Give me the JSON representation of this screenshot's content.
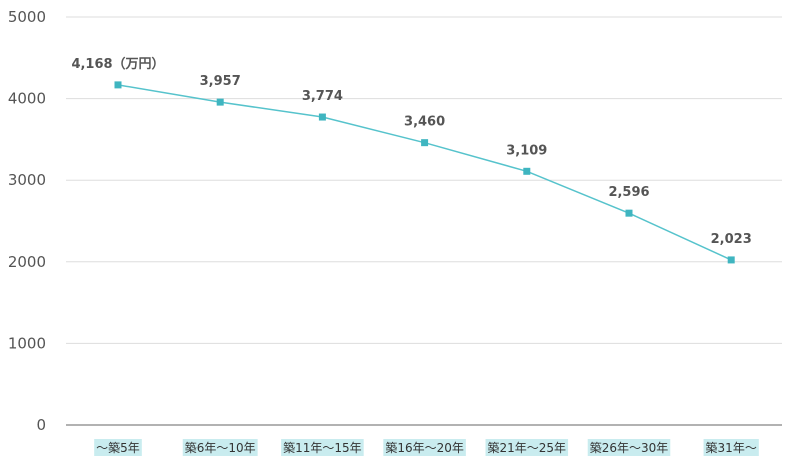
{
  "chart_data": {
    "type": "line",
    "categories": [
      "～築5年",
      "築6年～10年",
      "築11年～15年",
      "築16年～20年",
      "築21年～25年",
      "築26年～30年",
      "築31年～"
    ],
    "values": [
      4168,
      3957,
      3774,
      3460,
      3109,
      2596,
      2023
    ],
    "data_labels": [
      "4,168（万円）",
      "3,957",
      "3,774",
      "3,460",
      "3,109",
      "2,596",
      "2,023"
    ],
    "y_ticks": [
      "0",
      "1000",
      "2000",
      "3000",
      "4000",
      "5000"
    ],
    "ylim": [
      0,
      5000
    ],
    "grid": true,
    "colors": {
      "line": "#56c3cc",
      "marker": "#3fb5c0",
      "category_highlight": "#c9ecef",
      "grid": "#dddddd",
      "axis": "#666666"
    }
  }
}
